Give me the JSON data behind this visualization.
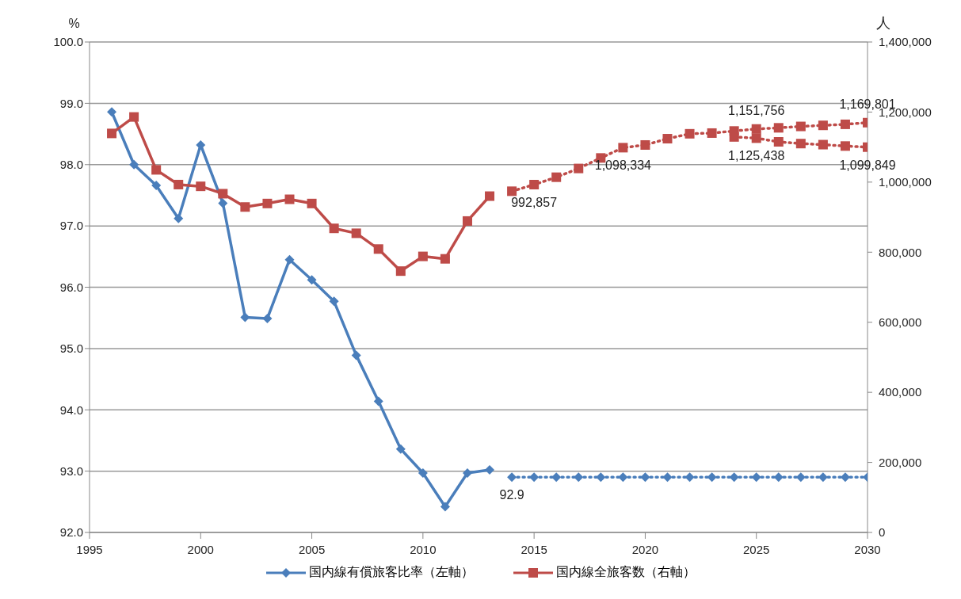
{
  "chart_data": {
    "type": "line",
    "ylabel": "%",
    "y2label": "人",
    "xlim": [
      1995,
      2030
    ],
    "xticks": [
      1995,
      2000,
      2005,
      2010,
      2015,
      2020,
      2025,
      2030
    ],
    "ylim": [
      92,
      100
    ],
    "yticks": [
      {
        "value": 92,
        "label": "92.0"
      },
      {
        "value": 93,
        "label": "93.0"
      },
      {
        "value": 94,
        "label": "94.0"
      },
      {
        "value": 95,
        "label": "95.0"
      },
      {
        "value": 96,
        "label": "96.0"
      },
      {
        "value": 97,
        "label": "97.0"
      },
      {
        "value": 98,
        "label": "98.0"
      },
      {
        "value": 99,
        "label": "99.0"
      },
      {
        "value": 100,
        "label": "100.0"
      }
    ],
    "y2lim": [
      0,
      1400000
    ],
    "y2ticks": [
      0,
      {
        "value": 200000,
        "label": "200,000"
      },
      {
        "value": 400000,
        "label": "400,000"
      },
      {
        "value": 600000,
        "label": "600,000"
      },
      {
        "value": 800000,
        "label": "800,000"
      },
      {
        "value": 1000000,
        "label": "1,000,000"
      },
      {
        "value": 1200000,
        "label": "1,200,000"
      },
      {
        "value": 1400000,
        "label": "1,400,000"
      }
    ],
    "grid": "y",
    "legend": "bottom",
    "series": [
      {
        "name": "国内線有償旅客比率（左軸）",
        "color": "#4a7ebb",
        "marker": "diamond",
        "line_style": "solid",
        "x": [
          1996,
          1997,
          1998,
          1999,
          2000,
          2001,
          2002,
          2003,
          2004,
          2005,
          2006,
          2007,
          2008,
          2009,
          2010,
          2011,
          2012,
          2013
        ],
        "values": [
          98.86,
          98.0,
          97.66,
          97.12,
          98.32,
          97.37,
          95.51,
          95.49,
          96.45,
          96.12,
          95.77,
          94.89,
          94.14,
          93.36,
          92.97,
          92.42,
          92.97,
          93.02
        ]
      },
      {
        "color": "#4a7ebb",
        "marker": "diamond",
        "line_style": "dotted",
        "x": [
          2014,
          2015,
          2016,
          2017,
          2018,
          2019,
          2020,
          2021,
          2022,
          2023,
          2024,
          2025,
          2026,
          2027,
          2028,
          2029,
          2030
        ],
        "values": [
          92.9,
          92.9,
          92.9,
          92.9,
          92.9,
          92.9,
          92.9,
          92.9,
          92.9,
          92.9,
          92.9,
          92.9,
          92.9,
          92.9,
          92.9,
          92.9,
          92.9
        ],
        "value_labels": [
          "92.9",
          null,
          null,
          null,
          null,
          null,
          null,
          null,
          null,
          null,
          null,
          null,
          null,
          null,
          null,
          null,
          null
        ]
      },
      {
        "name": "国内線全旅客数（右軸）",
        "color": "#be4b48",
        "marker": "square",
        "line_style": "solid",
        "axis": "y2",
        "x": [
          1996,
          1997,
          1998,
          1999,
          2000,
          2001,
          2002,
          2003,
          2004,
          2005,
          2006,
          2007,
          2008,
          2009,
          2010,
          2011,
          2012,
          2013
        ],
        "values": [
          1139000,
          1186000,
          1035000,
          993000,
          988000,
          967000,
          929000,
          939000,
          951000,
          939000,
          868000,
          854000,
          809000,
          746000,
          788000,
          781000,
          889000,
          960000
        ]
      },
      {
        "color": "#be4b48",
        "marker": "square",
        "line_style": "dotted",
        "axis": "y2",
        "x": [
          2014,
          2015,
          2016,
          2017,
          2018,
          2019,
          2020,
          2021,
          2022,
          2023,
          2024,
          2025,
          2026,
          2027,
          2028,
          2029,
          2030
        ],
        "values": [
          974000,
          992857,
          1014000,
          1039000,
          1069000,
          1098334,
          1106000,
          1124000,
          1138000,
          1140000,
          1146000,
          1151756,
          1155000,
          1159000,
          1162000,
          1165000,
          1169801
        ],
        "value_labels": [
          null,
          "992,857",
          null,
          null,
          null,
          "1,098,334",
          null,
          null,
          null,
          null,
          null,
          "1,151,756",
          null,
          null,
          null,
          null,
          "1,169,801"
        ]
      },
      {
        "color": "#be4b48",
        "marker": "square",
        "line_style": "dotted",
        "axis": "y2",
        "x": [
          2024,
          2025,
          2026,
          2027,
          2028,
          2029,
          2030
        ],
        "values": [
          1129000,
          1125438,
          1115000,
          1110000,
          1107000,
          1103000,
          1099849
        ],
        "value_labels": [
          null,
          "1,125,438",
          null,
          null,
          null,
          null,
          "1,099,849"
        ]
      }
    ]
  }
}
